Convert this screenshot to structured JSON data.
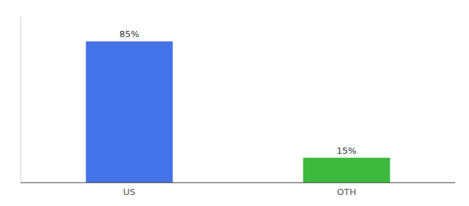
{
  "chart_data": {
    "type": "bar",
    "categories": [
      "US",
      "OTH"
    ],
    "values": [
      85,
      15
    ],
    "value_labels": [
      "85%",
      "15%"
    ],
    "colors": [
      "#4472e8",
      "#3dba3d"
    ],
    "ylim": [
      0,
      100
    ],
    "yticks": [],
    "tick_labels": "x",
    "data_labels": true
  }
}
